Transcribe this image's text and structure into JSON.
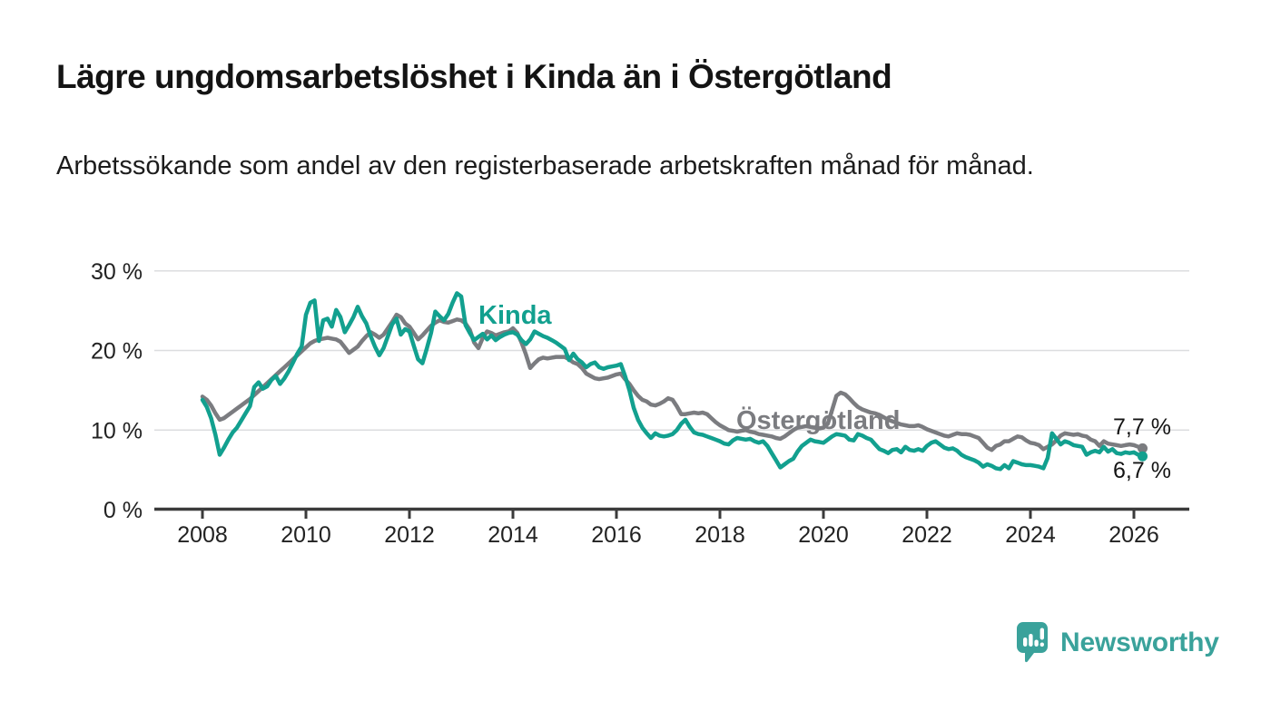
{
  "chart_data": {
    "type": "line",
    "title": "Lägre ungdomsarbetslöshet i Kinda än i Östergötland",
    "subtitle": "Arbetssökande som andel av den registerbaserade arbetskraften månad för månad.",
    "x_start_year": 2008,
    "x_interval": "monthly",
    "x_end": "2026-03",
    "xlim": [
      2007.1,
      2027.1
    ],
    "ylim": [
      0,
      30
    ],
    "grid": "horizontal",
    "legend_position": "inline-labels",
    "x_tick_years": [
      2008,
      2010,
      2012,
      2014,
      2016,
      2018,
      2020,
      2022,
      2024,
      2026
    ],
    "y_ticks": [
      {
        "value": 0,
        "label": "0 %"
      },
      {
        "value": 10,
        "label": "10 %"
      },
      {
        "value": 20,
        "label": "20 %"
      },
      {
        "value": 30,
        "label": "30 %"
      }
    ],
    "series": [
      {
        "id": "ostergotland",
        "name": "Östergötland",
        "color": "#7b7c80",
        "end_label": "7,7 %",
        "values": [
          14.2,
          13.8,
          13.1,
          12.1,
          11.3,
          11.5,
          11.9,
          12.3,
          12.7,
          13.1,
          13.5,
          13.9,
          14.4,
          14.9,
          15.4,
          15.9,
          16.4,
          16.9,
          17.4,
          17.9,
          18.4,
          18.9,
          19.4,
          19.9,
          20.4,
          20.9,
          21.2,
          21.4,
          21.5,
          21.6,
          21.5,
          21.4,
          21.1,
          20.4,
          19.7,
          20.1,
          20.5,
          21.2,
          21.8,
          22.3,
          22.0,
          21.6,
          22.0,
          22.8,
          23.6,
          24.5,
          24.2,
          23.4,
          23.0,
          22.2,
          21.4,
          21.9,
          22.5,
          23.1,
          23.5,
          23.8,
          23.6,
          23.5,
          23.7,
          23.9,
          23.8,
          23.4,
          22.6,
          21.0,
          20.3,
          21.6,
          22.4,
          22.2,
          21.9,
          22.1,
          22.3,
          22.4,
          22.8,
          22.2,
          21.0,
          19.5,
          17.8,
          18.4,
          18.9,
          19.1,
          19.0,
          19.1,
          19.2,
          19.2,
          19.2,
          18.9,
          18.5,
          18.3,
          17.8,
          17.1,
          16.8,
          16.5,
          16.4,
          16.5,
          16.6,
          16.8,
          17.0,
          17.1,
          16.4,
          15.8,
          15.0,
          14.3,
          13.8,
          13.6,
          13.2,
          13.1,
          13.3,
          13.6,
          14.0,
          13.8,
          13.0,
          12.0,
          12.0,
          12.1,
          12.2,
          12.1,
          12.2,
          12.0,
          11.5,
          11.0,
          10.6,
          10.3,
          10.0,
          9.9,
          9.8,
          9.9,
          10.0,
          9.8,
          9.7,
          9.5,
          9.4,
          9.3,
          9.2,
          9.0,
          8.9,
          9.2,
          9.6,
          10.0,
          10.3,
          10.4,
          10.5,
          10.4,
          10.3,
          10.2,
          10.3,
          10.8,
          12.5,
          14.3,
          14.7,
          14.5,
          14.0,
          13.4,
          12.9,
          12.6,
          12.4,
          12.2,
          12.1,
          11.9,
          11.6,
          11.3,
          11.1,
          10.9,
          10.7,
          10.6,
          10.5,
          10.5,
          10.6,
          10.4,
          10.1,
          9.9,
          9.7,
          9.5,
          9.3,
          9.2,
          9.4,
          9.6,
          9.5,
          9.5,
          9.4,
          9.2,
          9.0,
          8.4,
          7.8,
          7.5,
          8.0,
          8.2,
          8.6,
          8.6,
          8.9,
          9.2,
          9.1,
          8.7,
          8.4,
          8.3,
          8.1,
          7.6,
          7.9,
          8.2,
          8.7,
          9.3,
          9.6,
          9.5,
          9.4,
          9.5,
          9.3,
          9.2,
          8.8,
          8.6,
          8.0,
          8.6,
          8.3,
          8.2,
          8.1,
          8.0,
          8.1,
          8.2,
          8.1,
          7.9,
          7.7
        ]
      },
      {
        "id": "kinda",
        "name": "Kinda",
        "color": "#12a08f",
        "end_label": "6,7 %",
        "values": [
          13.8,
          12.9,
          11.5,
          9.4,
          6.9,
          7.8,
          8.8,
          9.7,
          10.3,
          11.2,
          12.1,
          13.0,
          15.4,
          16.0,
          15.2,
          15.5,
          16.3,
          16.8,
          15.8,
          16.5,
          17.4,
          18.5,
          19.6,
          20.5,
          24.5,
          26.0,
          26.3,
          21.2,
          23.8,
          24.0,
          23.0,
          25.1,
          24.2,
          22.3,
          23.2,
          24.2,
          25.5,
          24.3,
          23.4,
          21.8,
          20.5,
          19.4,
          20.3,
          21.8,
          23.3,
          24.0,
          22.0,
          22.7,
          22.4,
          20.6,
          18.9,
          18.4,
          20.2,
          22.2,
          24.9,
          24.3,
          23.8,
          24.6,
          26.0,
          27.2,
          26.8,
          23.2,
          22.2,
          21.3,
          21.7,
          22.1,
          21.4,
          21.9,
          21.3,
          21.7,
          22.0,
          22.2,
          22.3,
          22.0,
          21.3,
          20.8,
          21.4,
          22.4,
          22.1,
          21.8,
          21.6,
          21.3,
          21.0,
          20.6,
          20.2,
          18.8,
          19.6,
          18.9,
          18.5,
          17.9,
          18.3,
          18.5,
          17.9,
          17.7,
          17.9,
          18.0,
          18.1,
          18.3,
          16.8,
          15.0,
          12.8,
          11.3,
          10.3,
          9.6,
          9.0,
          9.6,
          9.3,
          9.2,
          9.3,
          9.5,
          10.0,
          10.8,
          11.3,
          10.4,
          9.7,
          9.5,
          9.4,
          9.2,
          9.0,
          8.8,
          8.6,
          8.3,
          8.2,
          8.7,
          9.0,
          8.9,
          8.8,
          8.9,
          8.6,
          8.4,
          8.6,
          8.0,
          7.1,
          6.2,
          5.3,
          5.7,
          6.1,
          6.4,
          7.3,
          8.0,
          8.4,
          8.8,
          8.6,
          8.5,
          8.4,
          8.8,
          9.2,
          9.5,
          9.4,
          9.3,
          8.8,
          8.7,
          9.5,
          9.3,
          9.0,
          8.8,
          8.2,
          7.6,
          7.4,
          7.1,
          7.5,
          7.6,
          7.2,
          7.9,
          7.5,
          7.4,
          7.6,
          7.4,
          8.0,
          8.4,
          8.6,
          8.2,
          7.8,
          7.6,
          7.7,
          7.4,
          6.9,
          6.6,
          6.4,
          6.2,
          5.9,
          5.4,
          5.7,
          5.5,
          5.2,
          5.1,
          5.6,
          5.2,
          6.1,
          5.9,
          5.7,
          5.6,
          5.6,
          5.5,
          5.4,
          5.2,
          6.5,
          9.6,
          8.9,
          8.2,
          8.6,
          8.4,
          8.1,
          8.0,
          7.9,
          6.9,
          7.2,
          7.4,
          7.2,
          7.9,
          7.3,
          7.6,
          7.1,
          7.0,
          7.2,
          7.1,
          7.2,
          6.9,
          6.7
        ]
      }
    ],
    "series_labels": {
      "kinda": "Kinda",
      "ostergotland": "Östergötland"
    },
    "end_labels": {
      "kinda": "6,7 %",
      "ostergotland": "7,7 %"
    }
  },
  "footer": {
    "brand": "Newsworthy"
  },
  "colors": {
    "kinda": "#12a08f",
    "ostergotland": "#7b7c80",
    "brand": "#3aa29b",
    "grid": "#dcdddf",
    "axis": "#3b3b3b"
  }
}
